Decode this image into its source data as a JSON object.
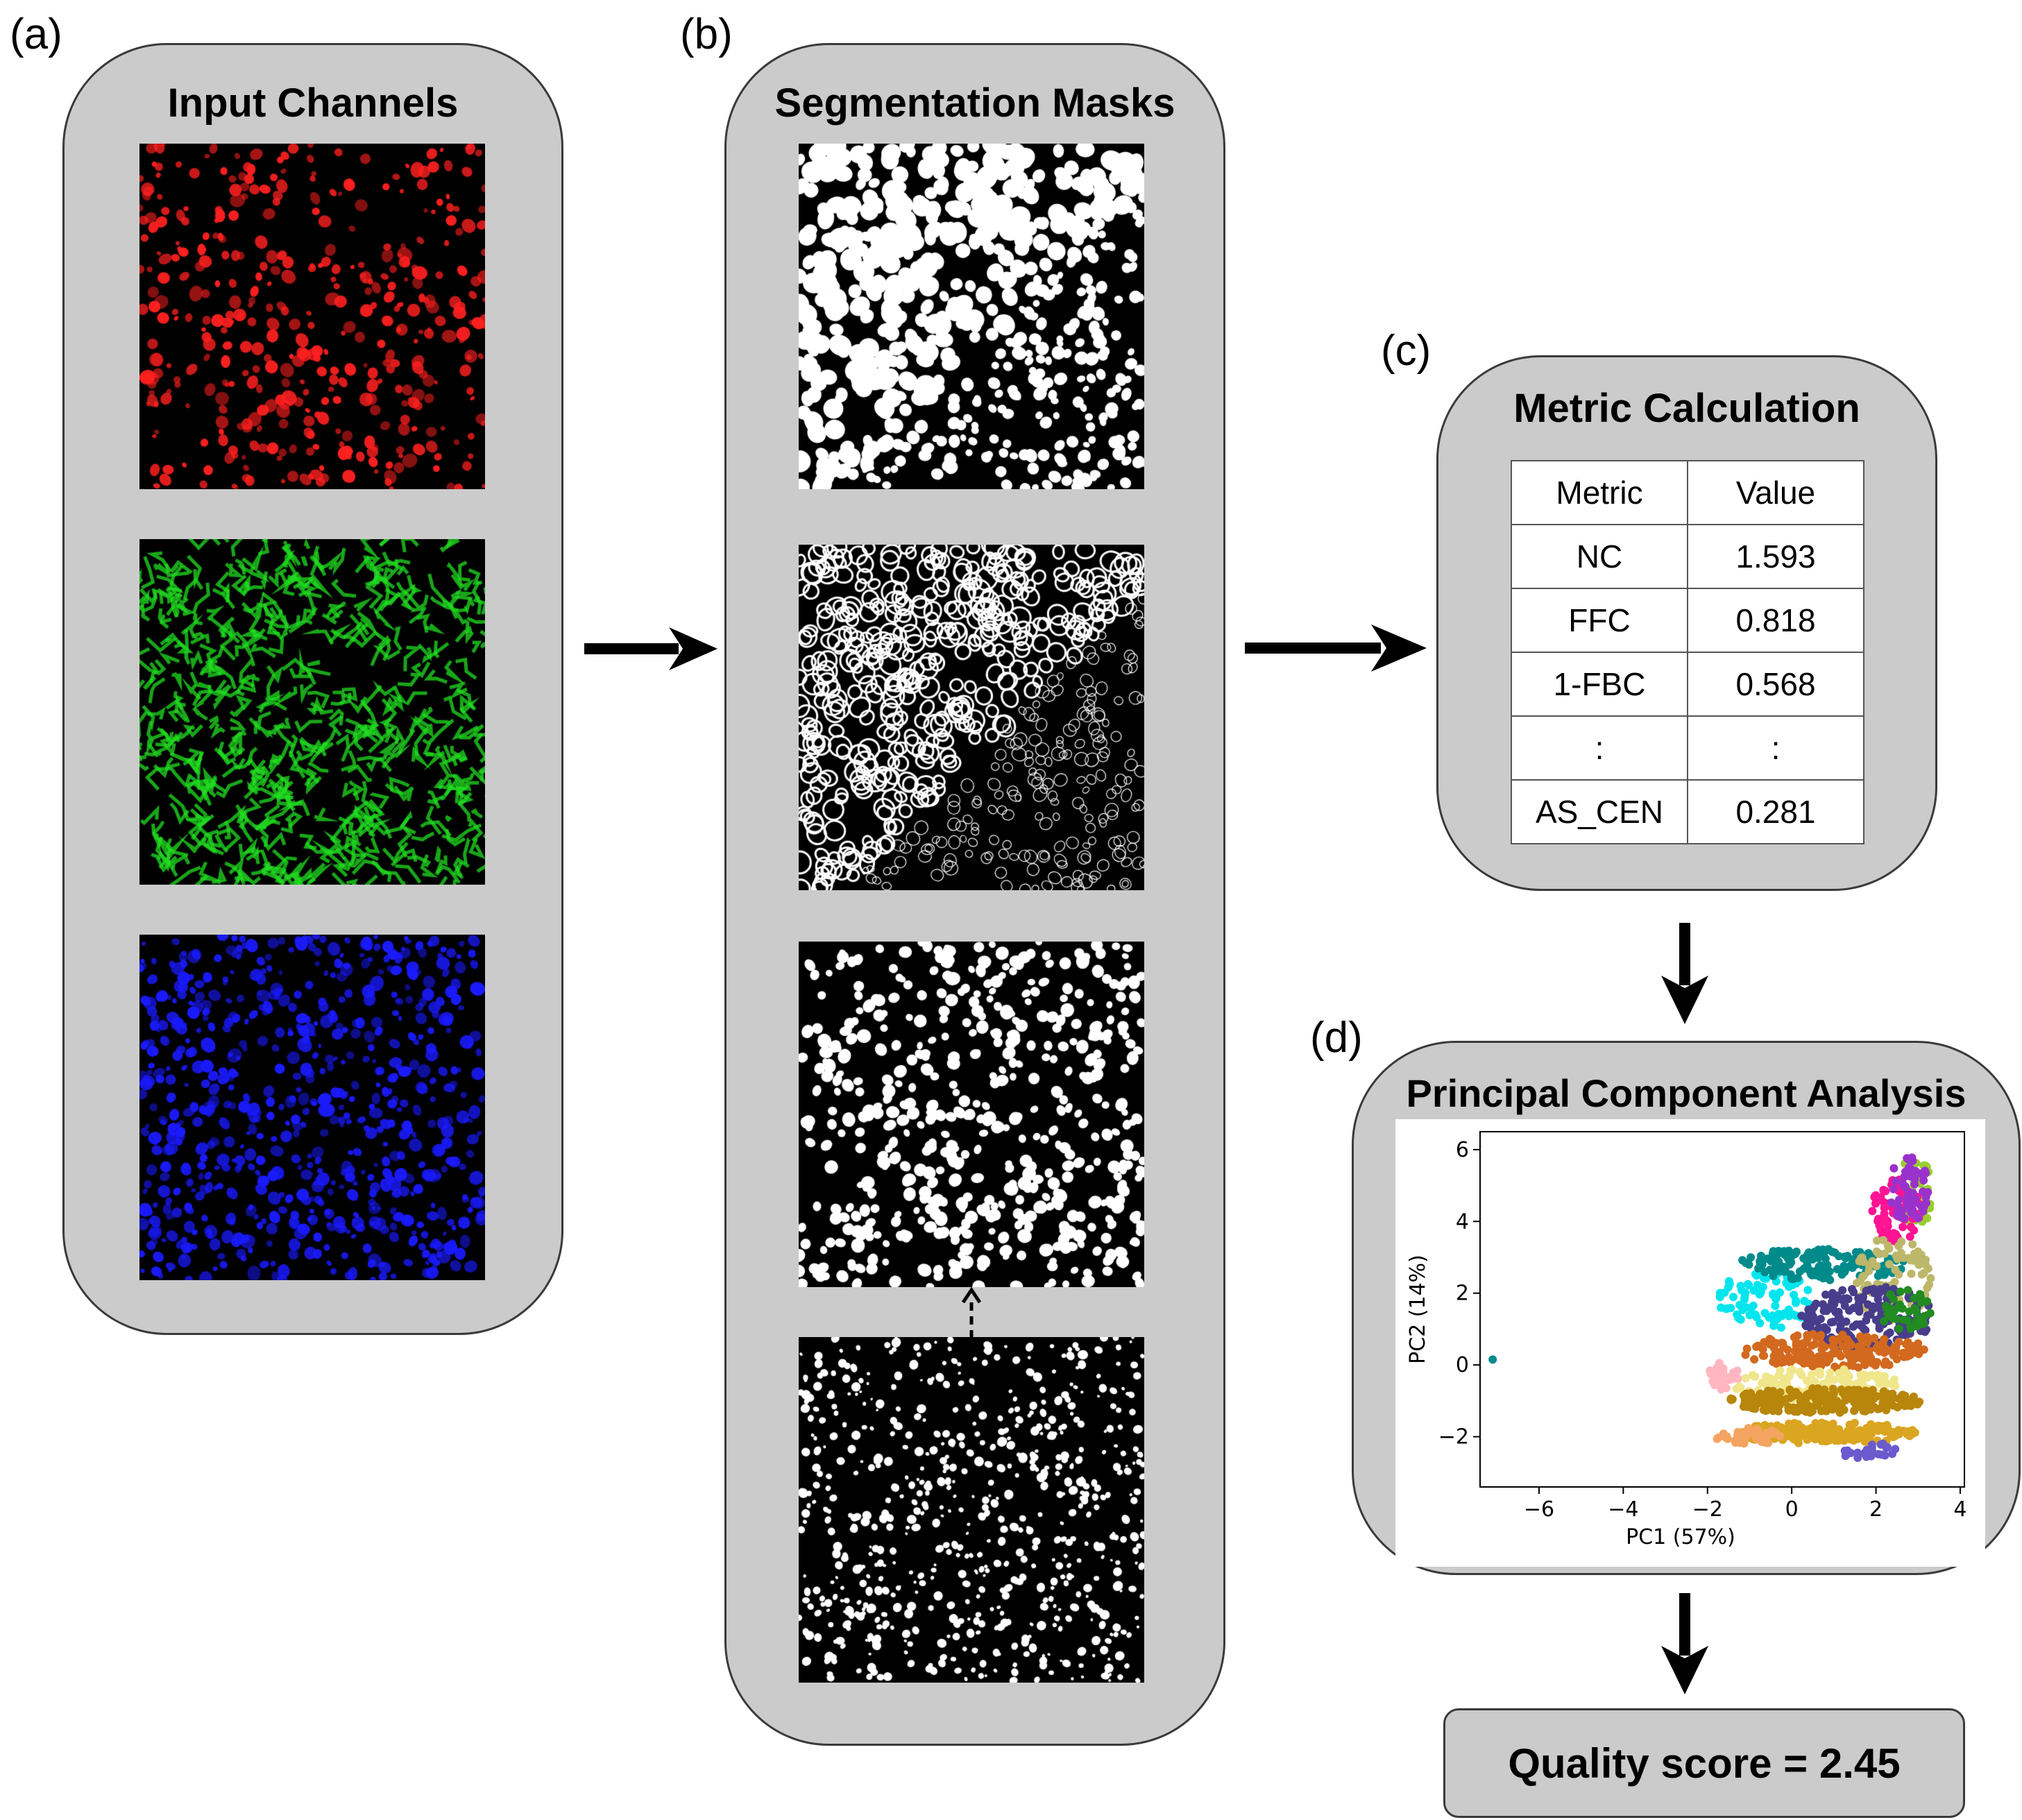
{
  "labels": {
    "a": "(a)",
    "b": "(b)",
    "c": "(c)",
    "d": "(d)"
  },
  "input_channels": {
    "title": "Input Channels",
    "channels": [
      {
        "name": "red-channel",
        "color": "#ff2020"
      },
      {
        "name": "green-channel",
        "color": "#22dd22"
      },
      {
        "name": "blue-channel",
        "color": "#1a1aff"
      }
    ]
  },
  "segmentation": {
    "title": "Segmentation Masks",
    "masks": [
      "filled-cells-mask",
      "cell-outlines-mask",
      "nuclei-mask",
      "raw-nuclei-mask"
    ]
  },
  "metrics": {
    "title": "Metric Calculation",
    "header": {
      "metric": "Metric",
      "value": "Value"
    },
    "rows": [
      {
        "metric": "NC",
        "value": "1.593"
      },
      {
        "metric": "FFC",
        "value": "0.818"
      },
      {
        "metric": "1-FBC",
        "value": "0.568"
      },
      {
        "metric": ":",
        "value": ":"
      },
      {
        "metric": "AS_CEN",
        "value": "0.281"
      }
    ]
  },
  "pca": {
    "title": "Principal Component Analysis"
  },
  "chart_data": {
    "type": "scatter",
    "xlabel": "PC1 (57%)",
    "ylabel": "PC2 (14%)",
    "xlim": [
      -7.4,
      4.1
    ],
    "ylim": [
      -3.4,
      6.5
    ],
    "xticks": [
      -6,
      -4,
      -2,
      0,
      2,
      4
    ],
    "yticks": [
      -2,
      0,
      2,
      4,
      6
    ],
    "xtick_labels": [
      "−6",
      "−4",
      "−2",
      "0",
      "2",
      "4"
    ],
    "ytick_labels": [
      "−2",
      "0",
      "2",
      "4",
      "6"
    ],
    "outlier": {
      "x": -7.1,
      "y": 0.15,
      "color": "#008b8b"
    },
    "clusters": [
      {
        "color": "#9acd32",
        "cx": 2.9,
        "cy": 4.8,
        "rx": 0.45,
        "ry": 1.0,
        "n": 40
      },
      {
        "color": "#ff1493",
        "cx": 2.5,
        "cy": 4.3,
        "rx": 0.6,
        "ry": 0.9,
        "n": 70
      },
      {
        "color": "#9932cc",
        "cx": 2.8,
        "cy": 4.9,
        "rx": 0.5,
        "ry": 0.9,
        "n": 60
      },
      {
        "color": "#00e5ee",
        "cx": -0.6,
        "cy": 1.8,
        "rx": 1.2,
        "ry": 0.8,
        "n": 80
      },
      {
        "color": "#008b8b",
        "cx": 0.7,
        "cy": 2.8,
        "rx": 2.0,
        "ry": 0.45,
        "n": 140
      },
      {
        "color": "#bdb76b",
        "cx": 2.4,
        "cy": 2.4,
        "rx": 0.9,
        "ry": 1.2,
        "n": 80
      },
      {
        "color": "#483d8b",
        "cx": 1.8,
        "cy": 1.3,
        "rx": 1.6,
        "ry": 0.9,
        "n": 160
      },
      {
        "color": "#228b22",
        "cx": 2.7,
        "cy": 1.5,
        "rx": 0.6,
        "ry": 0.6,
        "n": 40
      },
      {
        "color": "#ffb6c1",
        "cx": -1.6,
        "cy": -0.3,
        "rx": 0.4,
        "ry": 0.4,
        "n": 30
      },
      {
        "color": "#d2691e",
        "cx": 1.0,
        "cy": 0.4,
        "rx": 2.2,
        "ry": 0.5,
        "n": 180
      },
      {
        "color": "#f0e68c",
        "cx": 0.6,
        "cy": -0.6,
        "rx": 2.0,
        "ry": 0.5,
        "n": 140
      },
      {
        "color": "#b8860b",
        "cx": 0.8,
        "cy": -1.0,
        "rx": 2.3,
        "ry": 0.35,
        "n": 220
      },
      {
        "color": "#daa520",
        "cx": 0.8,
        "cy": -1.9,
        "rx": 2.2,
        "ry": 0.3,
        "n": 200
      },
      {
        "color": "#f4a460",
        "cx": -1.0,
        "cy": -2.0,
        "rx": 0.8,
        "ry": 0.25,
        "n": 40
      },
      {
        "color": "#6a5acd",
        "cx": 1.8,
        "cy": -2.4,
        "rx": 0.7,
        "ry": 0.25,
        "n": 25
      }
    ]
  },
  "score": {
    "text": "Quality score = 2.45"
  }
}
